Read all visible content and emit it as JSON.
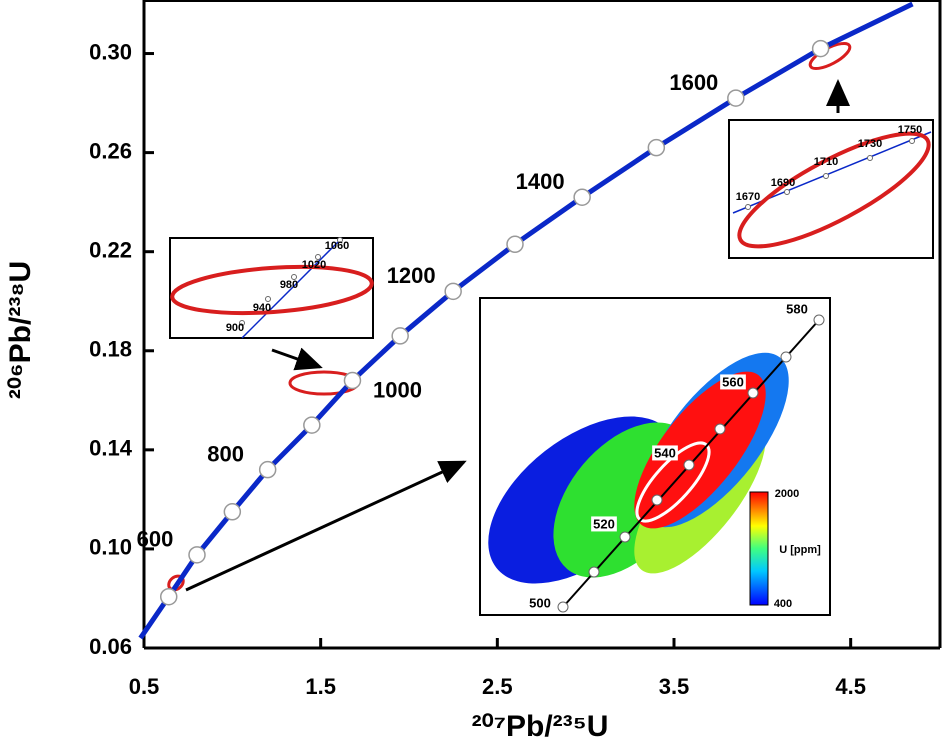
{
  "chart_data": {
    "type": "concordia",
    "x_label": "²⁰⁷Pb/²³⁵U",
    "y_label": "²⁰⁶Pb/²³⁸U",
    "xlim": [
      0.5,
      5.0
    ],
    "ylim": [
      0.06,
      0.32
    ],
    "xticks": [
      0.5,
      1.5,
      2.5,
      3.5,
      4.5
    ],
    "yticks": [
      0.06,
      {
        "value": 0.1,
        "label": "0.10"
      },
      0.14,
      0.18,
      0.22,
      0.26,
      {
        "value": 0.3,
        "label": "0.30"
      }
    ],
    "series": [
      {
        "name": "concordia",
        "color": "#0a28c8",
        "x": [
          0.48,
          0.64,
          0.8,
          1.0,
          1.2,
          1.45,
          1.68,
          1.95,
          2.25,
          2.6,
          2.98,
          3.4,
          3.85,
          4.33,
          4.85
        ],
        "y": [
          0.064,
          0.0807,
          0.0976,
          0.115,
          0.132,
          0.15,
          0.168,
          0.186,
          0.204,
          0.223,
          0.242,
          0.262,
          0.282,
          0.302,
          0.32
        ]
      }
    ],
    "age_markers": {
      "x": [
        0.64,
        0.8,
        1.0,
        1.2,
        1.45,
        1.68,
        1.95,
        2.25,
        2.6,
        2.98,
        3.4,
        3.85,
        4.33
      ],
      "y": [
        0.0807,
        0.0976,
        0.115,
        0.132,
        0.15,
        0.168,
        0.186,
        0.204,
        0.223,
        0.242,
        0.262,
        0.282,
        0.302
      ],
      "labels": [
        null,
        "600",
        null,
        "800",
        null,
        "1000",
        null,
        "1200",
        null,
        "1400",
        null,
        "1600",
        null
      ]
    },
    "insets": [
      {
        "labels": [
          "900",
          "940",
          "980",
          "1020",
          "1060"
        ]
      },
      {
        "labels": [
          "1670",
          "1690",
          "1710",
          "1730",
          "1750"
        ]
      },
      {
        "labels": [
          "500",
          "520",
          "540",
          "560",
          "580"
        ],
        "colorbar_title": "U [ppm]",
        "colorbar_ticks": [
          "400",
          "2000"
        ]
      }
    ]
  }
}
